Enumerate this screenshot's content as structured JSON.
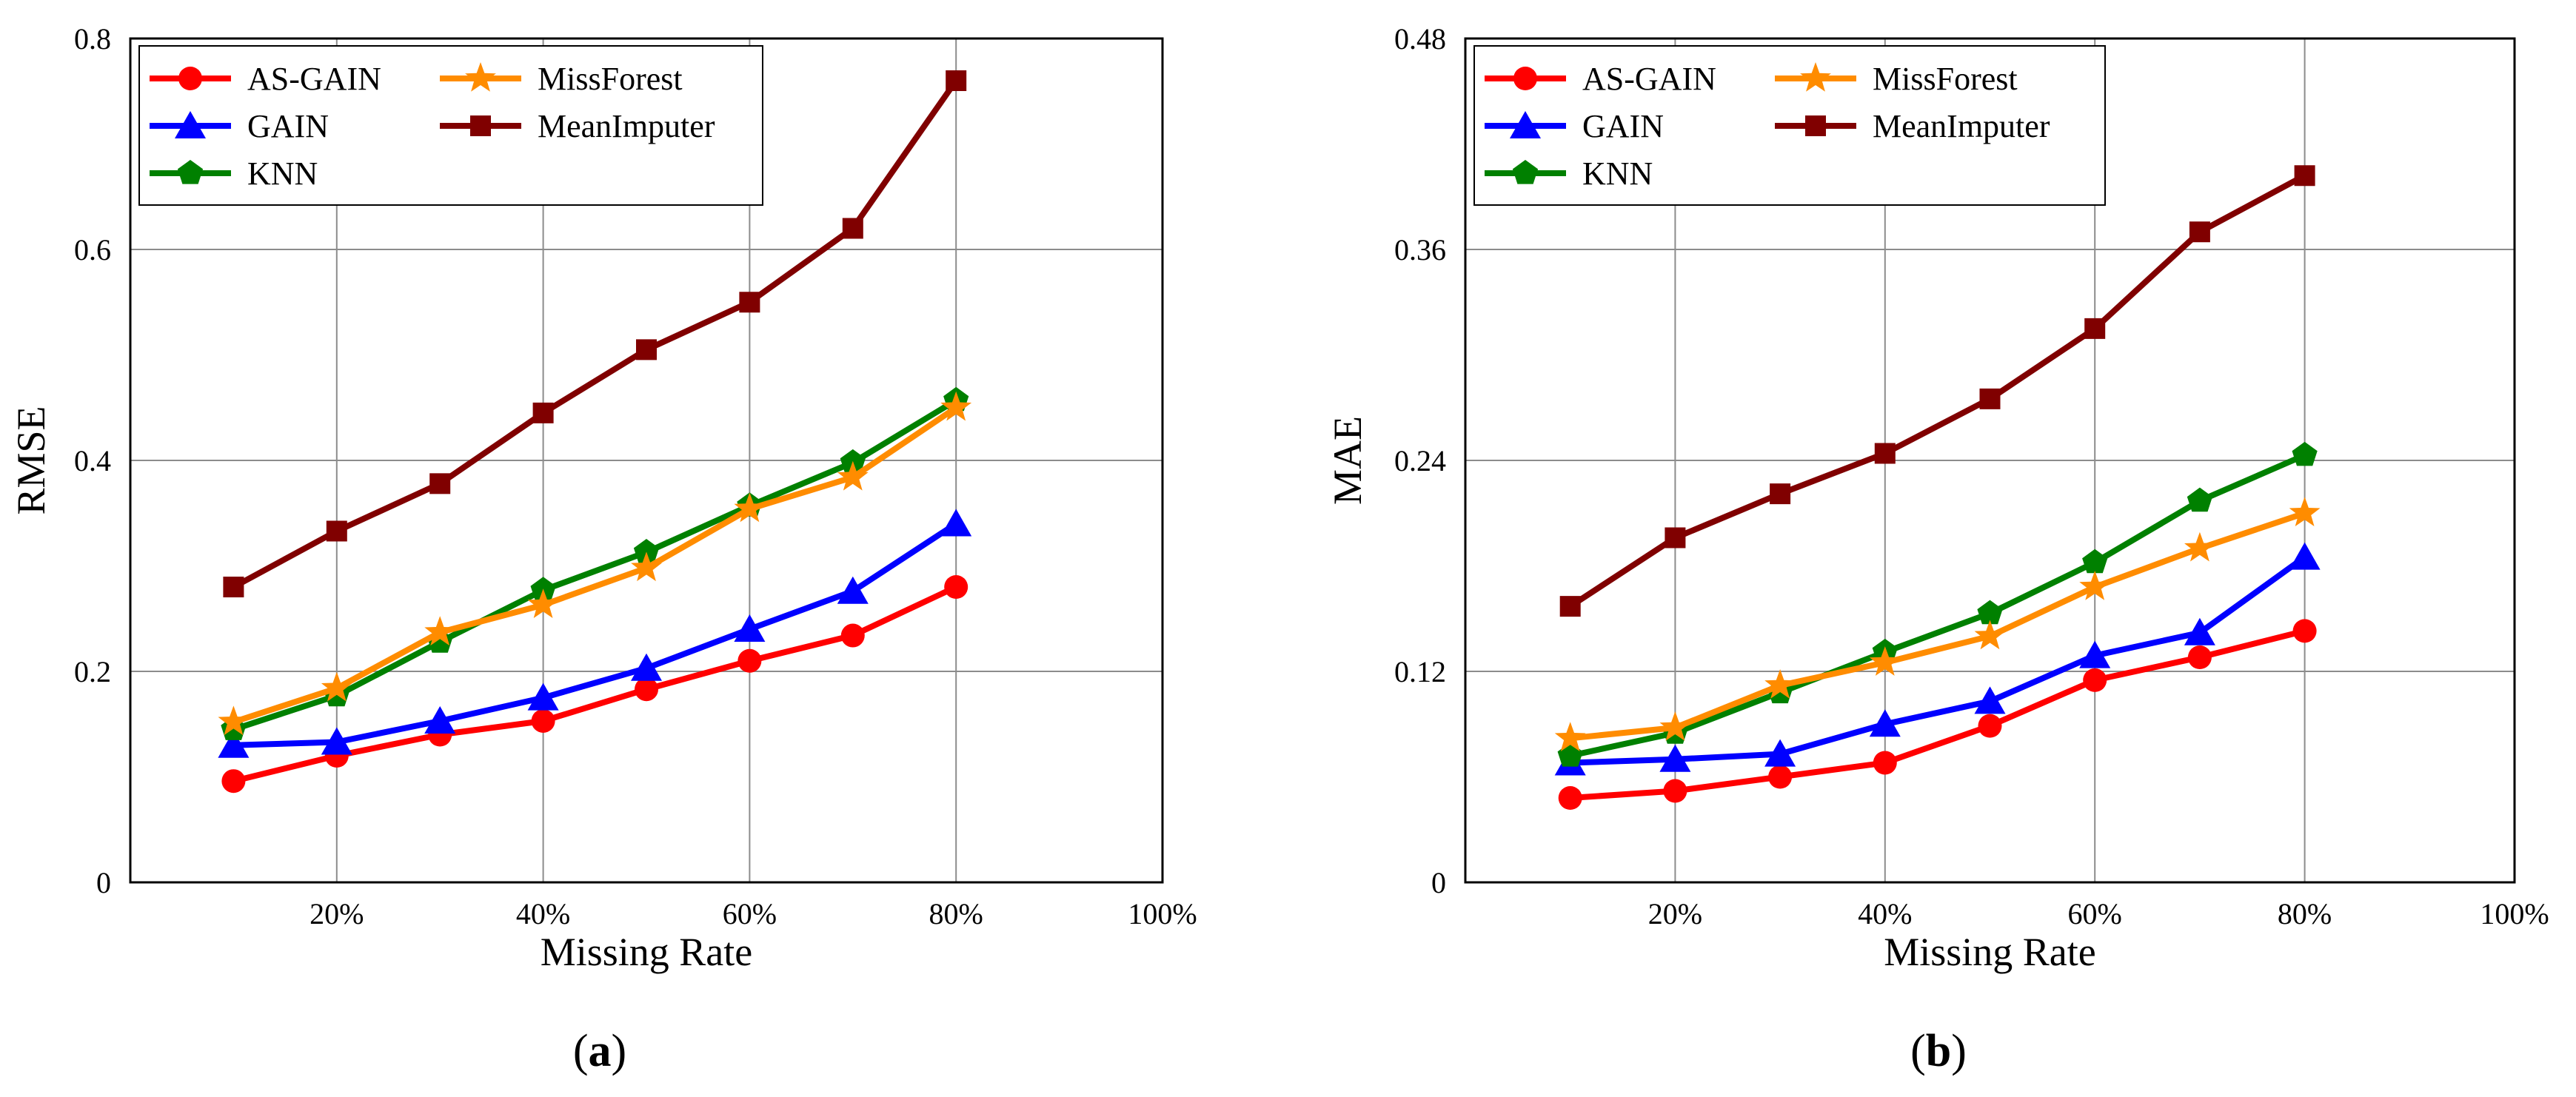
{
  "chart_data": [
    {
      "type": "line",
      "panel_label": "a",
      "title": "",
      "xlabel": "Missing Rate",
      "ylabel": "RMSE",
      "x": [
        10,
        20,
        30,
        40,
        50,
        60,
        70,
        80
      ],
      "xlim": [
        0,
        100
      ],
      "ylim": [
        0,
        0.8
      ],
      "xticks": [
        20,
        40,
        60,
        80,
        100
      ],
      "xtick_labels": [
        "20%",
        "40%",
        "60%",
        "80%",
        "100%"
      ],
      "yticks": [
        0,
        0.2,
        0.4,
        0.6,
        0.8
      ],
      "ytick_labels": [
        "0",
        "0.2",
        "0.4",
        "0.6",
        "0.8"
      ],
      "grid": true,
      "legend_position": "top-left",
      "series": [
        {
          "name": "AS-GAIN",
          "color": "#ff0000",
          "marker": "circle",
          "values": [
            0.096,
            0.12,
            0.14,
            0.153,
            0.183,
            0.21,
            0.234,
            0.28
          ]
        },
        {
          "name": "GAIN",
          "color": "#0000ff",
          "marker": "triangle",
          "values": [
            0.13,
            0.133,
            0.153,
            0.175,
            0.203,
            0.24,
            0.276,
            0.34
          ]
        },
        {
          "name": "KNN",
          "color": "#008000",
          "marker": "pentagon",
          "values": [
            0.145,
            0.177,
            0.228,
            0.277,
            0.313,
            0.357,
            0.398,
            0.457
          ]
        },
        {
          "name": "MissForest",
          "color": "#ff8c00",
          "marker": "star",
          "values": [
            0.152,
            0.184,
            0.237,
            0.263,
            0.298,
            0.354,
            0.384,
            0.45
          ]
        },
        {
          "name": "MeanImputer",
          "color": "#800000",
          "marker": "square",
          "values": [
            0.28,
            0.333,
            0.378,
            0.445,
            0.505,
            0.55,
            0.62,
            0.76
          ]
        }
      ]
    },
    {
      "type": "line",
      "panel_label": "b",
      "title": "",
      "xlabel": "Missing Rate",
      "ylabel": "MAE",
      "x": [
        10,
        20,
        30,
        40,
        50,
        60,
        70,
        80
      ],
      "xlim": [
        0,
        100
      ],
      "ylim": [
        0,
        0.48
      ],
      "xticks": [
        20,
        40,
        60,
        80,
        100
      ],
      "xtick_labels": [
        "20%",
        "40%",
        "60%",
        "80%",
        "100%"
      ],
      "yticks": [
        0,
        0.12,
        0.24,
        0.36,
        0.48
      ],
      "ytick_labels": [
        "0",
        "0.12",
        "0.24",
        "0.36",
        "0.48"
      ],
      "grid": true,
      "legend_position": "top-left",
      "series": [
        {
          "name": "AS-GAIN",
          "color": "#ff0000",
          "marker": "circle",
          "values": [
            0.048,
            0.052,
            0.06,
            0.068,
            0.089,
            0.115,
            0.128,
            0.143
          ]
        },
        {
          "name": "GAIN",
          "color": "#0000ff",
          "marker": "triangle",
          "values": [
            0.068,
            0.07,
            0.073,
            0.09,
            0.103,
            0.129,
            0.142,
            0.185
          ]
        },
        {
          "name": "KNN",
          "color": "#008000",
          "marker": "pentagon",
          "values": [
            0.072,
            0.085,
            0.108,
            0.131,
            0.153,
            0.182,
            0.217,
            0.243
          ]
        },
        {
          "name": "MissForest",
          "color": "#ff8c00",
          "marker": "star",
          "values": [
            0.082,
            0.088,
            0.112,
            0.125,
            0.14,
            0.168,
            0.19,
            0.21
          ]
        },
        {
          "name": "MeanImputer",
          "color": "#800000",
          "marker": "square",
          "values": [
            0.157,
            0.196,
            0.221,
            0.244,
            0.275,
            0.315,
            0.37,
            0.402
          ]
        }
      ]
    }
  ]
}
